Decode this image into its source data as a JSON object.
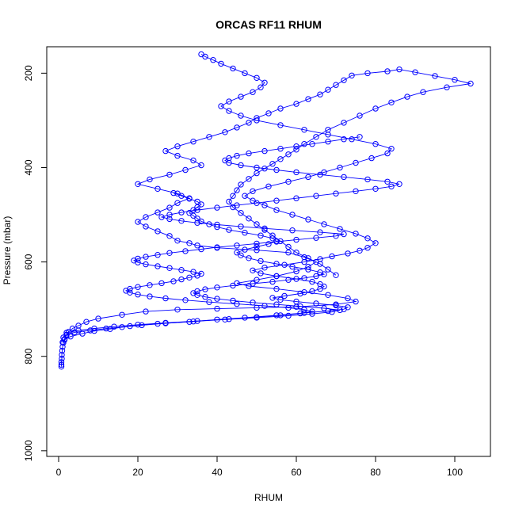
{
  "chart_data": {
    "type": "line",
    "title": "ORCAS RF11 RHUM",
    "xlabel": "RHUM",
    "ylabel": "Pressure (mbar)",
    "xlim": [
      -3,
      109
    ],
    "ylim": [
      1012,
      144
    ],
    "y_inverted": true,
    "grid": false,
    "legend": "none",
    "x_ticks": [
      0,
      20,
      40,
      60,
      80,
      100
    ],
    "y_ticks": [
      200,
      400,
      600,
      800,
      1000
    ],
    "line_color": "#0000ff",
    "marker": "open-circle",
    "series": [
      {
        "x": [
          0.7,
          0.7,
          0.7,
          0.8,
          0.8,
          0.9,
          1.0,
          1.2,
          1.5,
          2.0,
          2.5,
          3.5,
          5,
          7,
          10,
          16,
          22,
          30,
          40,
          50,
          60,
          70,
          75,
          73,
          68,
          62,
          55,
          48,
          45,
          50,
          55,
          60,
          63,
          65,
          62,
          58,
          50,
          40,
          35,
          33,
          30,
          28,
          25,
          22,
          20,
          22,
          25,
          28,
          30,
          33,
          30,
          25,
          20,
          23,
          28,
          32,
          36,
          34,
          30,
          27,
          30,
          34,
          38,
          42,
          45,
          48,
          50,
          53,
          56,
          60,
          63,
          66,
          68,
          70,
          72,
          74,
          78,
          83,
          86,
          90,
          95,
          100,
          104,
          98,
          92,
          88,
          84,
          80,
          76,
          72,
          68,
          65,
          62,
          60,
          58,
          56,
          54,
          52,
          50,
          48,
          46,
          45,
          44,
          43,
          44,
          46,
          48,
          50,
          52,
          54,
          56,
          58,
          60,
          63,
          66,
          68,
          70
        ],
        "y": [
          822,
          818,
          812,
          805,
          797,
          788,
          780,
          771,
          763,
          755,
          748,
          741,
          735,
          727,
          720,
          712,
          705,
          701,
          699,
          697,
          695,
          690,
          684,
          677,
          670,
          664,
          657,
          651,
          645,
          638,
          630,
          620,
          610,
          600,
          590,
          580,
          575,
          570,
          565,
          560,
          555,
          545,
          535,
          525,
          515,
          505,
          495,
          485,
          475,
          465,
          455,
          445,
          435,
          425,
          415,
          405,
          395,
          385,
          375,
          365,
          355,
          345,
          335,
          325,
          315,
          305,
          295,
          285,
          275,
          265,
          255,
          245,
          235,
          225,
          215,
          205,
          200,
          196,
          192,
          198,
          206,
          214,
          222,
          230,
          240,
          250,
          262,
          275,
          290,
          305,
          320,
          335,
          350,
          362,
          372,
          382,
          392,
          402,
          412,
          424,
          436,
          448,
          460,
          472,
          484,
          496,
          508,
          520,
          532,
          544,
          556,
          568,
          580,
          592,
          604,
          616,
          628
        ]
      },
      {
        "x": [
          1.0,
          1.5,
          3,
          6,
          9,
          13,
          18,
          25,
          33,
          40,
          47,
          55,
          62,
          68,
          72,
          73,
          70,
          65,
          60,
          56,
          54,
          57,
          61,
          64,
          66,
          67,
          66,
          64,
          60,
          55,
          51,
          49,
          52,
          57,
          62,
          66,
          69,
          73,
          76,
          78,
          80,
          78,
          75,
          71,
          67,
          63,
          59,
          55,
          52,
          49,
          47,
          49,
          53,
          58,
          63,
          67,
          71,
          75,
          79,
          83,
          84,
          80,
          74,
          68,
          62,
          56,
          50,
          46,
          43,
          41,
          43,
          46,
          49,
          51,
          52,
          50,
          47,
          44,
          41,
          39,
          37,
          36
        ],
        "y": [
          770,
          765,
          758,
          752,
          746,
          742,
          736,
          731,
          727,
          722,
          718,
          713,
          708,
          704,
          700,
          696,
          692,
          688,
          684,
          680,
          676,
          672,
          667,
          662,
          657,
          652,
          647,
          642,
          636,
          630,
          624,
          618,
          612,
          606,
          600,
          594,
          588,
          582,
          576,
          570,
          560,
          550,
          540,
          530,
          520,
          510,
          500,
          490,
          480,
          470,
          460,
          450,
          440,
          430,
          420,
          410,
          400,
          390,
          380,
          370,
          360,
          350,
          340,
          330,
          320,
          310,
          300,
          290,
          280,
          270,
          260,
          250,
          240,
          230,
          220,
          210,
          200,
          190,
          180,
          172,
          165,
          160
        ]
      },
      {
        "x": [
          1.2,
          2,
          4,
          8,
          12,
          16,
          21,
          27,
          34,
          42,
          50,
          58,
          64,
          69,
          71,
          67,
          61,
          55,
          49,
          44,
          40,
          37,
          35,
          34,
          35,
          37,
          40,
          44,
          49,
          54,
          58,
          62,
          65,
          67,
          66,
          63,
          59,
          55,
          51,
          48,
          46,
          45,
          47,
          50,
          53,
          55,
          54,
          51,
          47,
          43,
          40,
          38,
          36,
          35,
          34,
          33,
          34,
          35,
          36,
          35,
          33,
          31,
          29
        ],
        "y": [
          760,
          754,
          749,
          745,
          741,
          738,
          734,
          730,
          726,
          722,
          718,
          714,
          710,
          706,
          702,
          698,
          694,
          690,
          686,
          682,
          678,
          674,
          670,
          666,
          662,
          658,
          654,
          650,
          646,
          642,
          638,
          634,
          630,
          626,
          622,
          616,
          610,
          604,
          598,
          592,
          586,
          580,
          574,
          568,
          562,
          556,
          550,
          544,
          538,
          532,
          526,
          520,
          514,
          508,
          502,
          496,
          490,
          484,
          478,
          472,
          466,
          460,
          454
        ]
      },
      {
        "x": [
          2,
          5,
          9,
          14,
          20,
          27,
          35,
          43,
          50,
          56,
          61,
          64,
          62,
          58,
          52,
          45,
          38,
          32,
          27,
          23,
          20,
          18,
          17,
          18,
          20,
          23,
          26,
          29,
          31,
          33,
          35,
          36,
          34,
          31,
          28,
          25,
          22,
          20,
          19,
          20,
          22,
          25,
          28,
          32,
          36,
          40,
          45,
          50,
          55,
          60,
          65,
          70,
          72,
          66,
          59,
          52,
          46,
          40,
          35,
          31,
          28,
          26,
          28,
          31,
          35,
          40,
          45,
          50,
          55,
          60,
          65,
          70,
          75,
          80,
          84,
          86,
          83,
          78,
          72,
          66,
          60,
          55,
          50,
          46,
          43,
          42,
          43,
          45,
          48,
          52,
          56,
          60,
          64,
          68,
          72,
          76
        ],
        "y": [
          750,
          745,
          741,
          737,
          733,
          729,
          725,
          721,
          717,
          713,
          709,
          705,
          701,
          697,
          693,
          689,
          685,
          681,
          677,
          673,
          669,
          665,
          661,
          657,
          653,
          649,
          645,
          641,
          637,
          633,
          629,
          625,
          621,
          617,
          613,
          609,
          605,
          601,
          597,
          593,
          589,
          585,
          581,
          577,
          573,
          569,
          565,
          561,
          557,
          553,
          549,
          545,
          541,
          537,
          533,
          529,
          525,
          521,
          517,
          513,
          509,
          505,
          500,
          495,
          490,
          485,
          480,
          475,
          470,
          465,
          460,
          455,
          450,
          445,
          440,
          435,
          430,
          425,
          420,
          415,
          410,
          405,
          400,
          395,
          390,
          385,
          380,
          375,
          370,
          365,
          360,
          355,
          350,
          345,
          340,
          335
        ]
      }
    ]
  }
}
